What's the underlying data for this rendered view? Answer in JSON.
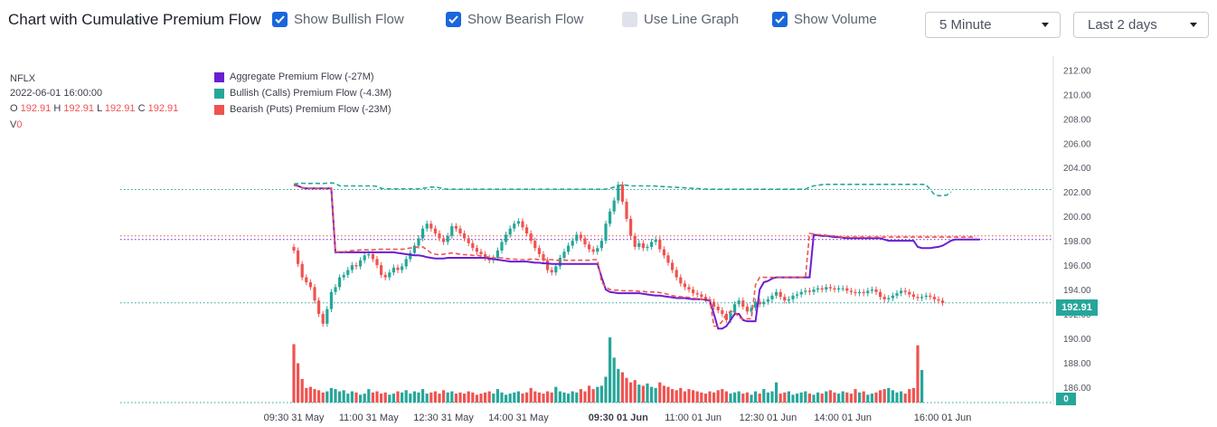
{
  "header": {
    "title": "Chart with Cumulative Premium Flow",
    "checkboxes": [
      {
        "label": "Show Bullish Flow",
        "checked": true
      },
      {
        "label": "Show Bearish Flow",
        "checked": true
      },
      {
        "label": "Use Line Graph",
        "checked": false
      },
      {
        "label": "Show Volume",
        "checked": true
      }
    ],
    "interval_select": "5 Minute",
    "range_select": "Last 2 days"
  },
  "ohlc": {
    "symbol": "NFLX",
    "datetime": "2022-06-01 16:00:00",
    "o_label": "O",
    "o": "192.91",
    "h_label": "H",
    "h": "192.91",
    "l_label": "L",
    "l": "192.91",
    "c_label": "C",
    "c": "192.91",
    "v_label": "V",
    "v": "0"
  },
  "legend": [
    {
      "label": "Aggregate Premium Flow",
      "value": "(-27M)",
      "color": "#6a1fd0"
    },
    {
      "label": "Bullish (Calls) Premium Flow",
      "value": "(-4.3M)",
      "color": "#26a69a"
    },
    {
      "label": "Bearish (Puts) Premium Flow",
      "value": "(-23M)",
      "color": "#ef5350"
    }
  ],
  "price_tag": "192.91",
  "volume_tag": "0",
  "colors": {
    "up": "#26a69a",
    "down": "#ef5350",
    "aggregate": "#6a1fd0"
  },
  "chart_data": {
    "type": "candlestick",
    "ylim": [
      185.4,
      212.4
    ],
    "y_ticks": [
      "212.00",
      "210.00",
      "208.00",
      "206.00",
      "204.00",
      "202.00",
      "200.00",
      "198.00",
      "196.00",
      "194.00",
      "192.00",
      "190.00",
      "188.00",
      "186.00"
    ],
    "y_tick_values": [
      212,
      210,
      208,
      206,
      204,
      202,
      200,
      198,
      196,
      194,
      192,
      190,
      188,
      186
    ],
    "x_ticks": [
      "09:30 31 May",
      "11:00 31 May",
      "12:30 31 May",
      "14:00 31 May",
      "09:30 01 Jun",
      "11:00 01 Jun",
      "12:30 01 Jun",
      "14:00 01 Jun",
      "16:00 01 Jun"
    ],
    "x_tick_bold": [
      false,
      false,
      false,
      false,
      true,
      false,
      false,
      false,
      false
    ],
    "x_tick_index": [
      0,
      18,
      36,
      54,
      78,
      96,
      114,
      132,
      156
    ],
    "candle_count": 157,
    "last_price": 192.91,
    "ref_lines": [
      {
        "name": "bullish-ref-line",
        "value": 202.2,
        "color": "#26a69a"
      },
      {
        "name": "bearish-ref-line",
        "value": 198.4,
        "color": "#ef5350"
      },
      {
        "name": "aggregate-ref-line",
        "value": 198.1,
        "color": "#6a1fd0"
      },
      {
        "name": "price-ref-line",
        "value": 192.91,
        "color": "#26a69a"
      }
    ],
    "closes": [
      197.2,
      196.1,
      195.0,
      194.6,
      194.2,
      193.1,
      192.0,
      191.2,
      192.4,
      193.8,
      194.2,
      195.0,
      195.2,
      195.6,
      196.0,
      195.9,
      196.4,
      196.8,
      196.9,
      196.5,
      196.0,
      195.2,
      195.0,
      195.4,
      195.8,
      195.6,
      195.9,
      196.5,
      197.0,
      197.6,
      198.2,
      199.0,
      199.4,
      199.0,
      198.6,
      198.2,
      197.9,
      198.4,
      199.2,
      199.0,
      198.6,
      198.2,
      197.8,
      197.4,
      197.1,
      196.9,
      196.6,
      196.4,
      196.6,
      197.2,
      197.9,
      198.5,
      199.0,
      199.4,
      199.6,
      199.1,
      198.6,
      198.0,
      197.4,
      196.9,
      196.4,
      195.6,
      195.4,
      195.9,
      196.6,
      197.1,
      197.6,
      198.0,
      198.5,
      198.2,
      197.7,
      197.3,
      197.1,
      197.4,
      198.0,
      199.4,
      200.4,
      201.3,
      202.6,
      201.2,
      199.8,
      198.4,
      197.5,
      197.8,
      197.4,
      197.5,
      197.9,
      198.1,
      197.3,
      196.8,
      196.2,
      195.6,
      195.0,
      194.5,
      194.2,
      194.0,
      193.7,
      193.6,
      193.4,
      193.2,
      193.0,
      192.6,
      192.3,
      192.0,
      191.5,
      192.1,
      192.8,
      193.1,
      192.6,
      192.2,
      192.5,
      193.0,
      192.8,
      193.0,
      193.2,
      193.5,
      193.8,
      193.4,
      193.1,
      193.2,
      193.5,
      193.6,
      193.8,
      193.9,
      193.8,
      194.0,
      194.1,
      194.0,
      194.2,
      194.1,
      194.0,
      194.1,
      194.1,
      193.9,
      193.8,
      193.7,
      193.8,
      193.7,
      193.9,
      194.0,
      193.8,
      193.4,
      193.2,
      193.3,
      193.5,
      193.7,
      193.9,
      193.8,
      193.6,
      193.4,
      193.3,
      193.4,
      193.5,
      193.4,
      193.2,
      193.1,
      192.91
    ],
    "volumes": [
      5200,
      3500,
      2100,
      1300,
      1400,
      1200,
      1100,
      900,
      1000,
      1300,
      1200,
      1000,
      1100,
      800,
      1000,
      900,
      700,
      800,
      1200,
      900,
      1000,
      800,
      900,
      700,
      800,
      1000,
      900,
      1100,
      800,
      1000,
      900,
      1200,
      800,
      900,
      1000,
      800,
      1100,
      900,
      1000,
      800,
      900,
      800,
      1000,
      900,
      700,
      800,
      900,
      1000,
      800,
      1200,
      900,
      700,
      800,
      900,
      1000,
      800,
      900,
      1300,
      1000,
      900,
      800,
      1000,
      900,
      1400,
      1000,
      900,
      800,
      1000,
      900,
      1200,
      1000,
      1500,
      1200,
      1400,
      1500,
      2300,
      5800,
      4000,
      3000,
      2700,
      2200,
      1800,
      2000,
      1600,
      1500,
      1700,
      1400,
      1300,
      1800,
      1500,
      1400,
      1200,
      1100,
      1300,
      1000,
      1200,
      1100,
      1000,
      900,
      800,
      1000,
      900,
      1100,
      1200,
      1000,
      800,
      900,
      1000,
      800,
      900,
      700,
      1000,
      800,
      1200,
      900,
      1000,
      1800,
      800,
      900,
      1000,
      700,
      800,
      900,
      1000,
      800,
      700,
      900,
      800,
      1000,
      1100,
      900,
      800,
      1000,
      900,
      800,
      1200,
      900,
      1000,
      700,
      800,
      900,
      1100,
      1200,
      1300,
      1100,
      900,
      1000,
      800,
      1200,
      1300,
      5100,
      2900
    ],
    "bullish_flow": [
      202.65,
      202.7,
      202.72,
      202.7,
      202.7,
      202.72,
      202.7,
      202.7,
      202.72,
      202.74,
      202.7,
      202.5,
      202.5,
      202.5,
      202.5,
      202.5,
      202.5,
      202.5,
      202.5,
      202.5,
      202.45,
      202.3,
      202.25,
      202.25,
      202.25,
      202.25,
      202.25,
      202.25,
      202.25,
      202.25,
      202.25,
      202.3,
      202.35,
      202.4,
      202.4,
      202.35,
      202.25,
      202.22,
      202.22,
      202.22,
      202.22,
      202.22,
      202.22,
      202.22,
      202.22,
      202.22,
      202.22,
      202.22,
      202.22,
      202.22,
      202.22,
      202.22,
      202.22,
      202.22,
      202.22,
      202.22,
      202.22,
      202.22,
      202.22,
      202.22,
      202.22,
      202.22,
      202.22,
      202.22,
      202.22,
      202.22,
      202.22,
      202.22,
      202.22,
      202.22,
      202.22,
      202.22,
      202.22,
      202.22,
      202.22,
      202.22,
      202.3,
      202.4,
      202.5,
      202.6,
      202.55,
      202.5,
      202.5,
      202.5,
      202.5,
      202.5,
      202.5,
      202.48,
      202.46,
      202.44,
      202.42,
      202.4,
      202.38,
      202.36,
      202.34,
      202.32,
      202.3,
      202.28,
      202.26,
      202.24,
      202.22,
      202.22,
      202.22,
      202.22,
      202.22,
      202.22,
      202.22,
      202.22,
      202.22,
      202.22,
      202.22,
      202.22,
      202.22,
      202.22,
      202.22,
      202.22,
      202.22,
      202.22,
      202.22,
      202.22,
      202.22,
      202.22,
      202.22,
      202.22,
      202.4,
      202.5,
      202.55,
      202.6,
      202.62,
      202.62,
      202.62,
      202.62,
      202.62,
      202.62,
      202.62,
      202.62,
      202.62,
      202.62,
      202.62,
      202.62,
      202.62,
      202.62,
      202.62,
      202.62,
      202.62,
      202.62,
      202.62,
      202.62,
      202.62,
      202.62,
      202.62,
      202.62,
      202.6,
      202.2,
      201.8,
      201.7,
      201.7,
      201.75,
      202.0
    ],
    "bearish_flow": [
      202.55,
      202.45,
      202.35,
      202.3,
      202.3,
      202.3,
      202.3,
      202.3,
      202.3,
      202.3,
      197.1,
      197.1,
      197.1,
      197.15,
      197.2,
      197.2,
      197.25,
      197.25,
      197.25,
      197.25,
      197.3,
      197.3,
      197.3,
      197.3,
      197.3,
      197.3,
      197.3,
      197.35,
      197.4,
      197.45,
      197.5,
      197.5,
      197.25,
      197.0,
      196.9,
      196.85,
      196.9,
      196.95,
      197.0,
      196.95,
      196.9,
      196.85,
      196.85,
      196.8,
      196.8,
      196.75,
      196.7,
      196.65,
      196.6,
      196.6,
      196.6,
      196.55,
      196.5,
      196.5,
      196.45,
      196.45,
      196.45,
      196.5,
      196.5,
      196.45,
      196.45,
      196.45,
      196.45,
      196.4,
      196.4,
      196.4,
      196.4,
      196.4,
      196.4,
      196.4,
      196.4,
      196.4,
      196.45,
      196.45,
      194.6,
      194.2,
      194.0,
      193.95,
      193.95,
      193.9,
      193.9,
      193.9,
      193.9,
      193.85,
      193.85,
      193.8,
      193.8,
      193.8,
      193.75,
      193.7,
      193.6,
      193.5,
      193.45,
      193.4,
      193.4,
      193.35,
      193.3,
      193.25,
      193.2,
      193.2,
      193.15,
      191.0,
      191.0,
      191.4,
      192.0,
      192.2,
      192.2,
      191.7,
      191.6,
      191.6,
      191.6,
      194.4,
      195.0,
      195.0,
      195.0,
      195.0,
      195.0,
      195.0,
      195.0,
      195.0,
      195.0,
      195.0,
      195.0,
      195.0,
      198.6,
      198.55,
      198.5,
      198.5,
      198.45,
      198.4,
      198.4,
      198.35,
      198.3,
      198.3,
      198.3,
      198.3,
      198.3,
      198.3,
      198.3,
      198.3,
      198.3,
      198.3,
      198.3,
      198.3,
      198.3,
      198.3,
      198.3,
      198.3,
      198.3,
      198.3,
      198.3,
      198.3,
      198.3,
      198.3,
      198.3,
      198.3,
      198.3,
      198.3,
      198.3,
      198.3,
      198.3,
      198.3,
      198.3,
      198.3,
      198.3
    ],
    "aggregate_flow": [
      202.6,
      202.5,
      202.35,
      202.3,
      202.3,
      202.3,
      202.3,
      202.3,
      202.3,
      202.3,
      197.05,
      197.05,
      197.05,
      197.05,
      197.05,
      197.05,
      197.05,
      197.05,
      197.05,
      197.05,
      197.05,
      197.05,
      197.05,
      197.05,
      197.05,
      197.0,
      196.95,
      196.9,
      196.85,
      196.8,
      196.8,
      196.75,
      196.65,
      196.6,
      196.55,
      196.55,
      196.55,
      196.6,
      196.6,
      196.6,
      196.6,
      196.6,
      196.6,
      196.6,
      196.6,
      196.6,
      196.6,
      196.55,
      196.5,
      196.45,
      196.4,
      196.35,
      196.3,
      196.3,
      196.3,
      196.3,
      196.3,
      196.25,
      196.2,
      196.2,
      196.15,
      196.15,
      196.1,
      196.1,
      196.1,
      196.1,
      196.1,
      196.1,
      196.1,
      196.1,
      196.1,
      196.1,
      196.1,
      196.1,
      195.0,
      194.0,
      193.8,
      193.75,
      193.7,
      193.7,
      193.7,
      193.7,
      193.7,
      193.7,
      193.65,
      193.6,
      193.55,
      193.5,
      193.5,
      193.45,
      193.4,
      193.35,
      193.3,
      193.3,
      193.3,
      193.25,
      193.2,
      193.2,
      193.2,
      193.15,
      193.1,
      192.0,
      190.8,
      190.8,
      191.0,
      191.5,
      192.0,
      192.0,
      191.5,
      191.4,
      191.4,
      191.4,
      194.0,
      194.6,
      194.7,
      194.9,
      195.0,
      195.0,
      195.0,
      195.0,
      195.0,
      195.0,
      195.0,
      195.0,
      195.0,
      198.5,
      198.45,
      198.4,
      198.4,
      198.35,
      198.3,
      198.3,
      198.25,
      198.2,
      198.2,
      198.2,
      198.2,
      198.2,
      198.2,
      198.2,
      198.2,
      198.2,
      198.1,
      198.0,
      198.0,
      198.0,
      198.0,
      198.0,
      198.0,
      198.0,
      197.5,
      197.4,
      197.4,
      197.4,
      197.45,
      197.5,
      197.6,
      197.8,
      198.0,
      198.1,
      198.1,
      198.1,
      198.1,
      198.1,
      198.1,
      198.1
    ]
  }
}
